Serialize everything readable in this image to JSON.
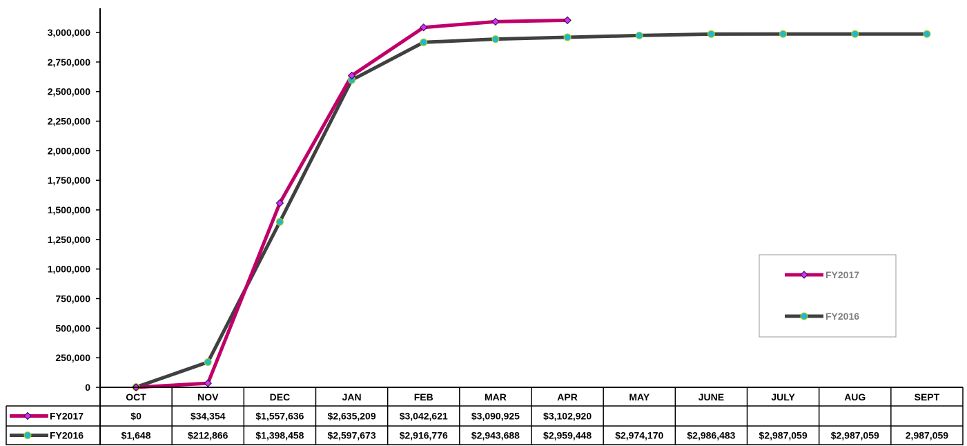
{
  "chart_data": {
    "type": "line",
    "categories": [
      "OCT",
      "NOV",
      "DEC",
      "JAN",
      "FEB",
      "MAR",
      "APR",
      "MAY",
      "JUNE",
      "JULY",
      "AUG",
      "SEPT"
    ],
    "ylim": [
      0,
      3000000
    ],
    "yticks": [
      0,
      250000,
      500000,
      750000,
      1000000,
      1250000,
      1500000,
      1750000,
      2000000,
      2250000,
      2500000,
      2750000,
      3000000
    ],
    "ytick_labels": [
      "0",
      "250,000",
      "500,000",
      "750,000",
      "1,000,000",
      "1,250,000",
      "1,500,000",
      "1,750,000",
      "2,000,000",
      "2,250,000",
      "2,500,000",
      "2,750,000",
      "3,000,000"
    ],
    "grid": false,
    "legend_position": "right",
    "series": [
      {
        "name": "FY2017",
        "color": "#c0006a",
        "marker": "diamond",
        "marker_color": "#cc33ff",
        "values": [
          0,
          34354,
          1557636,
          2635209,
          3042621,
          3090925,
          3102920,
          null,
          null,
          null,
          null,
          null
        ],
        "labels": [
          "$0",
          "$34,354",
          "$1,557,636",
          "$2,635,209",
          "$3,042,621",
          "$3,090,925",
          "$3,102,920",
          "",
          "",
          "",
          "",
          ""
        ]
      },
      {
        "name": "FY2016",
        "color": "#404040",
        "marker": "circle",
        "marker_color": "#1fb8d0",
        "values": [
          1648,
          212866,
          1398458,
          2597673,
          2916776,
          2943688,
          2959448,
          2974170,
          2986483,
          2987059,
          2987059,
          2987059
        ],
        "labels": [
          "$1,648",
          "$212,866",
          "$1,398,458",
          "$2,597,673",
          "$2,916,776",
          "$2,943,688",
          "$2,959,448",
          "$2,974,170",
          "$2,986,483",
          "$2,987,059",
          "$2,987,059",
          "2,987,059"
        ]
      }
    ]
  }
}
